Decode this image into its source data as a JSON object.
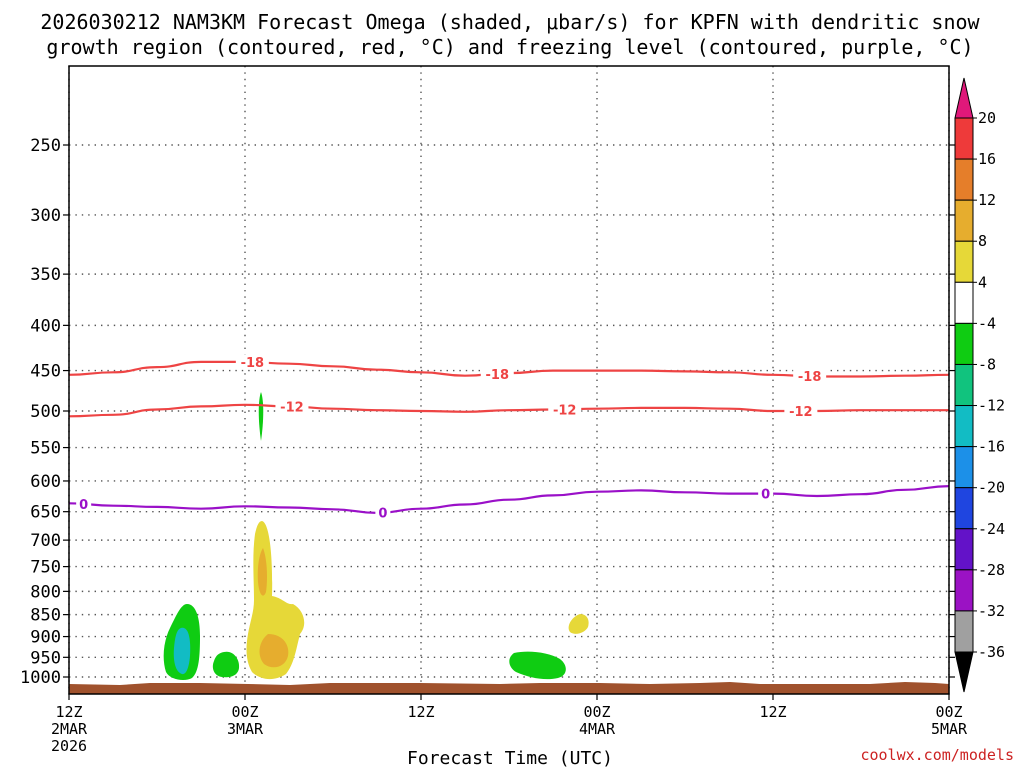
{
  "chart_data": {
    "type": "heatmap",
    "title_lines": [
      "2026030212 NAM3KM Forecast Omega (shaded, μbar/s) for KPFN with dendritic snow",
      "growth region (contoured, red, °C) and freezing level (contoured, purple, °C)"
    ],
    "xlabel": "Forecast Time (UTC)",
    "ylabel": "",
    "x_range_hours": [
      0,
      60
    ],
    "x_ticks": [
      {
        "hour": 0,
        "lines": [
          "12Z",
          "2MAR",
          "2026"
        ]
      },
      {
        "hour": 12,
        "lines": [
          "00Z",
          "3MAR"
        ]
      },
      {
        "hour": 24,
        "lines": [
          "12Z"
        ]
      },
      {
        "hour": 36,
        "lines": [
          "00Z",
          "4MAR"
        ]
      },
      {
        "hour": 48,
        "lines": [
          "12Z"
        ]
      },
      {
        "hour": 60,
        "lines": [
          "00Z",
          "5MAR"
        ]
      }
    ],
    "y_range_hpa": [
      200,
      1030
    ],
    "y_ticks_hpa": [
      250,
      300,
      350,
      400,
      450,
      500,
      550,
      600,
      650,
      700,
      750,
      800,
      850,
      900,
      950,
      1000
    ],
    "grid": true,
    "colorbar": {
      "labels": [
        "20",
        "16",
        "12",
        "8",
        "4",
        "-4",
        "-8",
        "-12",
        "-16",
        "-20",
        "-24",
        "-28",
        "-32",
        "-36"
      ],
      "colors_top_to_bottom": [
        "#e0187a",
        "#ee3a3a",
        "#e57e2a",
        "#e6ad2e",
        "#e6d838",
        "#ffffff",
        "#0fcc12",
        "#11c37e",
        "#12bcc4",
        "#1c90e8",
        "#1f45e0",
        "#6312c8",
        "#9b12c4",
        "#a0a0a0",
        "#000000"
      ]
    },
    "contours": [
      {
        "name": "dgz-minus18",
        "label": "-18",
        "color": "#ee4444",
        "points_hr_hpa": [
          [
            0,
            455
          ],
          [
            3,
            452
          ],
          [
            6,
            446
          ],
          [
            9,
            440
          ],
          [
            12,
            440
          ],
          [
            15,
            442
          ],
          [
            18,
            445
          ],
          [
            21,
            449
          ],
          [
            24,
            452
          ],
          [
            27,
            456
          ],
          [
            30,
            453
          ],
          [
            33,
            450
          ],
          [
            36,
            450
          ],
          [
            39,
            450
          ],
          [
            42,
            451
          ],
          [
            45,
            452
          ],
          [
            48,
            455
          ],
          [
            51,
            457
          ],
          [
            54,
            457
          ],
          [
            57,
            456
          ],
          [
            60,
            455
          ]
        ],
        "label_hours": [
          12.5,
          29.2,
          50.5
        ]
      },
      {
        "name": "dgz-minus12",
        "label": "-12",
        "color": "#ee4444",
        "points_hr_hpa": [
          [
            0,
            507
          ],
          [
            3,
            505
          ],
          [
            6,
            498
          ],
          [
            9,
            494
          ],
          [
            12,
            492
          ],
          [
            15,
            494
          ],
          [
            18,
            497
          ],
          [
            21,
            499
          ],
          [
            24,
            500
          ],
          [
            27,
            501
          ],
          [
            30,
            499
          ],
          [
            33,
            498
          ],
          [
            36,
            497
          ],
          [
            39,
            496
          ],
          [
            42,
            496
          ],
          [
            45,
            497
          ],
          [
            48,
            500
          ],
          [
            51,
            500
          ],
          [
            54,
            499
          ],
          [
            57,
            499
          ],
          [
            60,
            499
          ]
        ],
        "label_hours": [
          15.2,
          33.8,
          49.9
        ]
      },
      {
        "name": "freezing-level",
        "label": "0",
        "color": "#9a10c8",
        "points_hr_hpa": [
          [
            0,
            636
          ],
          [
            3,
            640
          ],
          [
            6,
            642
          ],
          [
            9,
            645
          ],
          [
            12,
            641
          ],
          [
            15,
            643
          ],
          [
            18,
            646
          ],
          [
            21,
            652
          ],
          [
            24,
            645
          ],
          [
            27,
            638
          ],
          [
            30,
            630
          ],
          [
            33,
            623
          ],
          [
            36,
            617
          ],
          [
            39,
            615
          ],
          [
            42,
            618
          ],
          [
            45,
            620
          ],
          [
            48,
            620
          ],
          [
            51,
            624
          ],
          [
            54,
            621
          ],
          [
            57,
            614
          ],
          [
            60,
            608
          ]
        ],
        "label_hours": [
          1.0,
          21.4,
          47.5
        ]
      }
    ],
    "shaded_regions": [
      {
        "name": "upward-cell-1",
        "value_range": "-12 to -4",
        "color": "#0fcc12",
        "center": [
          7.8,
          930
        ],
        "span_hours": 2.4
      },
      {
        "name": "upward-cell-1-core",
        "value_range": "-16 to -12",
        "color": "#12bcc4",
        "center": [
          7.8,
          935
        ],
        "span_hours": 0.9
      },
      {
        "name": "upward-cell-2",
        "value_range": "-8 to -4",
        "color": "#0fcc12",
        "center": [
          10.7,
          965
        ],
        "span_hours": 1.8
      },
      {
        "name": "upward-cell-3",
        "value_range": "-8 to -4",
        "color": "#0fcc12",
        "center": [
          13.0,
          510
        ],
        "span_hours": 0.4
      },
      {
        "name": "downward-plume",
        "value_range": "4 to 12",
        "color": "#e6d838",
        "center": [
          13.5,
          820
        ],
        "span_hours": 4.5
      },
      {
        "name": "upward-cell-4",
        "value_range": "-8 to -4",
        "color": "#0fcc12",
        "center": [
          32.7,
          960
        ],
        "span_hours": 3.9
      },
      {
        "name": "downward-cell-small",
        "value_range": "4 to 8",
        "color": "#e6d838",
        "center": [
          34.6,
          870
        ],
        "span_hours": 1.3
      }
    ],
    "surface": {
      "name": "terrain-surface",
      "color": "#a0522d"
    }
  },
  "credit": "coolwx.com/models"
}
